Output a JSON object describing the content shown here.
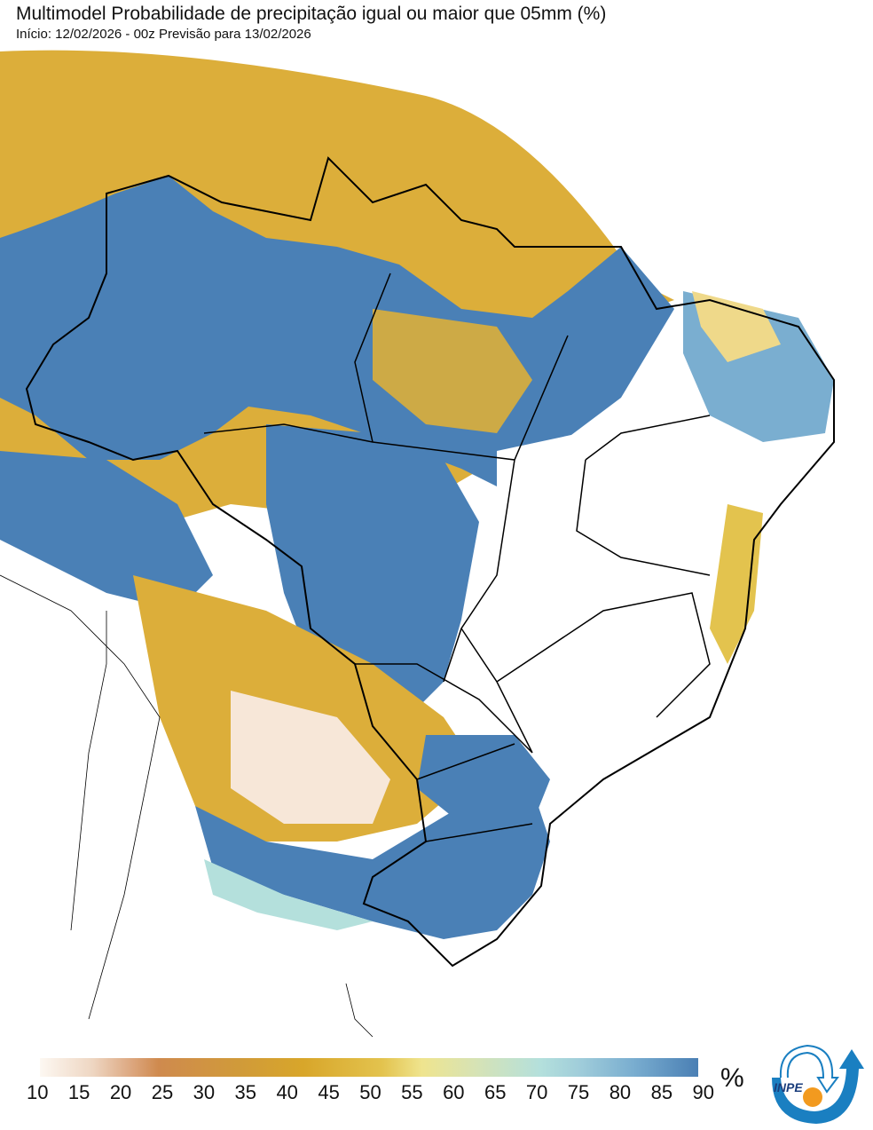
{
  "header": {
    "title": "Multimodel Probabilidade de precipitação igual ou maior que 05mm (%)",
    "subtitle": "Início: 12/02/2026 - 00z  Previsão para 13/02/2026"
  },
  "colorbar": {
    "ticks": [
      "10",
      "15",
      "20",
      "25",
      "30",
      "35",
      "40",
      "45",
      "50",
      "55",
      "60",
      "65",
      "70",
      "75",
      "80",
      "85",
      "90"
    ],
    "unit": "%",
    "colors": {
      "low": "#fdf8f2",
      "mid_low": "#cf8a4e",
      "mid": "#d8a62a",
      "mid_high": "#efe48e",
      "high_light": "#b4e0dc",
      "high": "#4a7fb4"
    }
  },
  "logo": {
    "text": "INPE",
    "colors": {
      "arrow": "#1a7fc1",
      "sun": "#f29a1f"
    }
  }
}
